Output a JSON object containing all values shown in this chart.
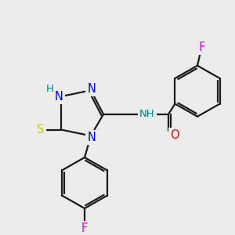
{
  "background_color": "#ebebeb",
  "bond_color": "#1a1a1a",
  "atom_colors": {
    "N": "#0000ee",
    "S": "#cccc00",
    "O": "#ff0000",
    "F": "#ee00ee",
    "H_label": "#008080",
    "C": "#1a1a1a"
  },
  "lw": 1.6,
  "figsize": [
    3.0,
    3.0
  ],
  "dpi": 100
}
